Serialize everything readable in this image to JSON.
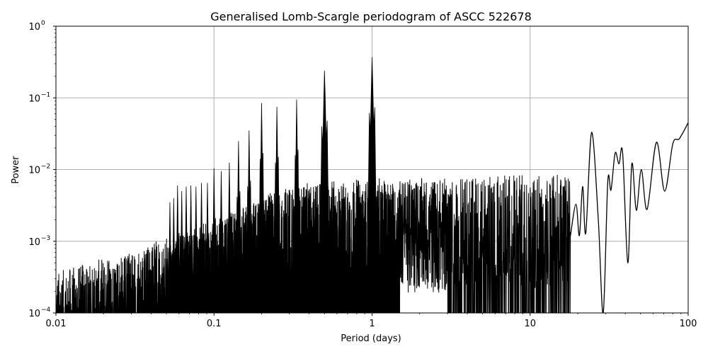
{
  "chart_data": {
    "type": "line",
    "title": "Generalised Lomb-Scargle periodogram of ASCC 522678",
    "xlabel": "Period (days)",
    "ylabel": "Power",
    "xscale": "log",
    "yscale": "log",
    "xlim": [
      0.01,
      100
    ],
    "ylim": [
      0.0001,
      1
    ],
    "grid": true,
    "legend": null,
    "x_ticks": [
      {
        "value": 0.01,
        "label": "0.01"
      },
      {
        "value": 0.1,
        "label": "0.1"
      },
      {
        "value": 1,
        "label": "1"
      },
      {
        "value": 10,
        "label": "10"
      },
      {
        "value": 100,
        "label": "100"
      }
    ],
    "y_ticks": [
      {
        "value": 1,
        "base": "10",
        "exp": "0"
      },
      {
        "value": 0.1,
        "base": "10",
        "exp": "−1"
      },
      {
        "value": 0.01,
        "base": "10",
        "exp": "−2"
      },
      {
        "value": 0.001,
        "base": "10",
        "exp": "−3"
      },
      {
        "value": 0.0001,
        "base": "10",
        "exp": "−4"
      }
    ],
    "line_color": "#000000",
    "grid_color": "#b0b0b0",
    "noise_floor": [
      {
        "x": 0.01,
        "y": 0.00015
      },
      {
        "x": 0.03,
        "y": 0.0003
      },
      {
        "x": 0.1,
        "y": 0.0008
      },
      {
        "x": 0.3,
        "y": 0.0025
      },
      {
        "x": 1,
        "y": 0.003
      },
      {
        "x": 3,
        "y": 0.003
      },
      {
        "x": 10,
        "y": 0.0035
      }
    ],
    "alias_peaks": [
      {
        "x": 0.0526,
        "y": 0.0035
      },
      {
        "x": 0.0556,
        "y": 0.004
      },
      {
        "x": 0.0588,
        "y": 0.006
      },
      {
        "x": 0.0625,
        "y": 0.005
      },
      {
        "x": 0.0667,
        "y": 0.0058
      },
      {
        "x": 0.0714,
        "y": 0.006
      },
      {
        "x": 0.0769,
        "y": 0.0058
      },
      {
        "x": 0.0833,
        "y": 0.0065
      },
      {
        "x": 0.0909,
        "y": 0.0065
      },
      {
        "x": 0.1,
        "y": 0.0105
      },
      {
        "x": 0.1111,
        "y": 0.0095
      },
      {
        "x": 0.125,
        "y": 0.0125
      },
      {
        "x": 0.1429,
        "y": 0.025
      },
      {
        "x": 0.1667,
        "y": 0.035
      },
      {
        "x": 0.2,
        "y": 0.085
      },
      {
        "x": 0.25,
        "y": 0.075
      },
      {
        "x": 0.3333,
        "y": 0.095
      },
      {
        "x": 0.5,
        "y": 0.24
      },
      {
        "x": 1.0,
        "y": 0.37
      }
    ],
    "long_period_curve": [
      {
        "x": 18,
        "y": 0.0012
      },
      {
        "x": 19.5,
        "y": 0.0033
      },
      {
        "x": 20.5,
        "y": 0.0012
      },
      {
        "x": 21.5,
        "y": 0.0058
      },
      {
        "x": 22.5,
        "y": 0.0013
      },
      {
        "x": 24.5,
        "y": 0.033
      },
      {
        "x": 27,
        "y": 0.002
      },
      {
        "x": 29,
        "y": 0.0001
      },
      {
        "x": 31,
        "y": 0.0068
      },
      {
        "x": 32.5,
        "y": 0.0052
      },
      {
        "x": 34.5,
        "y": 0.017
      },
      {
        "x": 36.5,
        "y": 0.012
      },
      {
        "x": 38.5,
        "y": 0.017
      },
      {
        "x": 41.5,
        "y": 0.0005
      },
      {
        "x": 44,
        "y": 0.012
      },
      {
        "x": 47,
        "y": 0.0027
      },
      {
        "x": 50.5,
        "y": 0.01
      },
      {
        "x": 55,
        "y": 0.0028
      },
      {
        "x": 63,
        "y": 0.024
      },
      {
        "x": 71,
        "y": 0.005
      },
      {
        "x": 80,
        "y": 0.023
      },
      {
        "x": 88,
        "y": 0.027
      },
      {
        "x": 100,
        "y": 0.045
      }
    ]
  }
}
